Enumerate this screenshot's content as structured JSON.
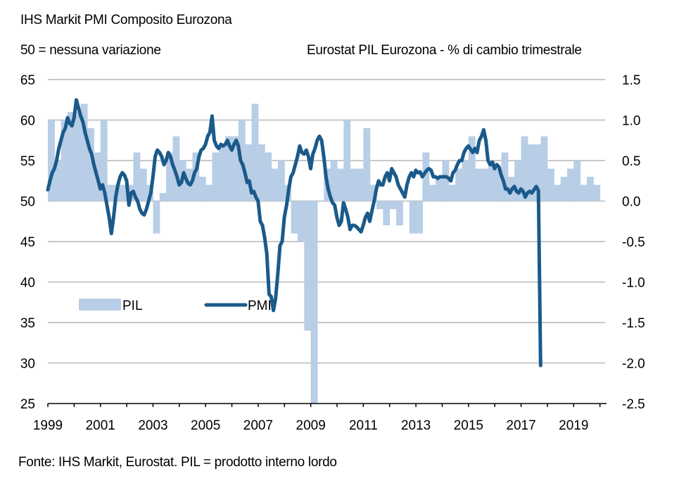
{
  "header": {
    "title": "IHS  Markit PMI  Composito Eurozona",
    "left_subtitle": "50 = nessuna variazione",
    "right_subtitle": "Eurostat PIL  Eurozona - % di cambio trimestrale"
  },
  "footer": {
    "source": "Fonte: IHS  Markit, Eurostat. PIL  = prodotto interno lordo"
  },
  "colors": {
    "pil": "#b8cde6",
    "pmi": "#1a5a8a",
    "grid": "#c8c8c8",
    "axis": "#000000"
  },
  "chart_data": {
    "type": "bar+line",
    "title": "IHS Markit PMI Composito Eurozona",
    "left_axis": {
      "label": "50 = nessuna variazione",
      "range": [
        25,
        65
      ],
      "ticks": [
        65,
        60,
        55,
        50,
        45,
        40,
        35,
        30,
        25
      ]
    },
    "right_axis": {
      "label": "Eurostat PIL Eurozona - % di cambio trimestrale",
      "range": [
        -2.5,
        1.5
      ],
      "ticks": [
        "1.5",
        "1.0",
        "0.5",
        "0.0",
        "-0.5",
        "-1.0",
        "-1.5",
        "-2.0",
        "-2.5"
      ]
    },
    "x_axis": {
      "range": [
        1999,
        2020.25
      ],
      "tick_labels": [
        "1999",
        "2001",
        "2003",
        "2005",
        "2007",
        "2009",
        "2011",
        "2013",
        "2015",
        "2017",
        "2019"
      ]
    },
    "grid": true,
    "legend": {
      "placement": "middle-left",
      "entries": [
        "PIL",
        "PMI"
      ]
    },
    "series": [
      {
        "name": "PIL",
        "type": "bar",
        "axis": "right",
        "start": 1999.0,
        "step": 0.25,
        "values": [
          1.0,
          0.5,
          1.0,
          1.1,
          1.1,
          1.2,
          0.9,
          0.6,
          1.0,
          0.2,
          0.2,
          0.2,
          0.2,
          0.6,
          0.4,
          0.2,
          -0.4,
          0.1,
          0.6,
          0.8,
          0.5,
          0.4,
          0.6,
          0.3,
          0.2,
          0.6,
          0.7,
          0.8,
          0.8,
          1.0,
          0.7,
          1.2,
          0.7,
          0.6,
          0.4,
          0.5,
          0.2,
          -0.4,
          -0.5,
          -1.6,
          -2.6,
          0.0,
          0.4,
          0.5,
          0.4,
          1.0,
          0.4,
          0.4,
          0.9,
          0.2,
          -0.1,
          -0.3,
          -0.1,
          -0.3,
          0.0,
          -0.4,
          -0.4,
          0.6,
          0.2,
          0.3,
          0.5,
          0.2,
          0.4,
          0.5,
          0.8,
          0.4,
          0.4,
          0.5,
          0.4,
          0.6,
          0.3,
          0.5,
          0.8,
          0.7,
          0.7,
          0.8,
          0.4,
          0.2,
          0.3,
          0.4,
          0.5,
          0.2,
          0.3,
          0.2
        ],
        "color": "#b8cde6"
      },
      {
        "name": "PMI",
        "type": "line",
        "axis": "left",
        "start": 1999.0,
        "step": 0.0833,
        "values": [
          51.4,
          52.5,
          53.5,
          54.0,
          55.0,
          56.5,
          57.5,
          58.5,
          59.0,
          60.3,
          59.6,
          59.3,
          60.3,
          62.5,
          61.5,
          60.5,
          59.8,
          58.5,
          57.5,
          56.5,
          55.8,
          54.5,
          53.5,
          52.5,
          51.5,
          52.0,
          51.0,
          49.5,
          48.0,
          46.0,
          48.0,
          50.5,
          52.0,
          53.0,
          53.5,
          53.2,
          52.5,
          49.5,
          51.0,
          51.2,
          50.5,
          50.0,
          49.0,
          48.5,
          48.3,
          49.0,
          50.0,
          51.0,
          53.0,
          55.5,
          56.3,
          56.0,
          55.5,
          54.5,
          55.0,
          56.0,
          55.5,
          54.5,
          53.8,
          53.0,
          52.0,
          52.3,
          53.5,
          52.8,
          52.2,
          52.0,
          52.5,
          53.5,
          54.0,
          55.5,
          56.3,
          56.5,
          57.0,
          58.0,
          58.5,
          60.5,
          57.5,
          56.8,
          56.5,
          57.0,
          56.8,
          57.0,
          57.5,
          56.8,
          56.3,
          57.0,
          57.5,
          56.8,
          55.0,
          54.5,
          53.5,
          52.3,
          52.5,
          51.0,
          51.2,
          50.5,
          50.0,
          47.5,
          47.0,
          45.5,
          43.5,
          38.5,
          38.2,
          36.5,
          38.0,
          41.0,
          44.5,
          45.0,
          48.0,
          49.5,
          51.5,
          53.0,
          53.5,
          54.5,
          55.5,
          56.8,
          56.0,
          55.8,
          56.3,
          55.5,
          54.0,
          55.8,
          56.5,
          57.5,
          58.0,
          57.5,
          55.5,
          53.0,
          51.5,
          50.5,
          49.8,
          49.5,
          48.0,
          47.0,
          47.5,
          49.8,
          49.0,
          48.0,
          46.5,
          47.0,
          47.0,
          46.8,
          46.5,
          46.2,
          47.0,
          48.0,
          48.5,
          47.5,
          48.8,
          50.0,
          51.5,
          52.5,
          52.0,
          52.0,
          53.0,
          53.5,
          52.5,
          54.0,
          53.5,
          53.0,
          52.0,
          51.5,
          51.0,
          50.5,
          52.0,
          53.0,
          53.5,
          53.0,
          53.8,
          53.5,
          53.6,
          53.0,
          53.4,
          53.8,
          54.0,
          53.8,
          53.0,
          53.0,
          52.8,
          53.0,
          53.0,
          53.0,
          53.0,
          52.8,
          52.5,
          53.5,
          53.8,
          54.5,
          55.0,
          55.0,
          56.0,
          56.5,
          56.8,
          56.4,
          56.0,
          56.5,
          56.0,
          57.5,
          58.0,
          58.8,
          57.5,
          55.0,
          54.5,
          54.8,
          54.0,
          54.5,
          54.2,
          53.2,
          52.5,
          51.5,
          51.5,
          51.0,
          51.5,
          51.8,
          51.2,
          51.0,
          51.5,
          51.2,
          50.5,
          51.0,
          51.2,
          51.0,
          51.4,
          51.8,
          51.3,
          29.7
        ]
      }
    ]
  }
}
